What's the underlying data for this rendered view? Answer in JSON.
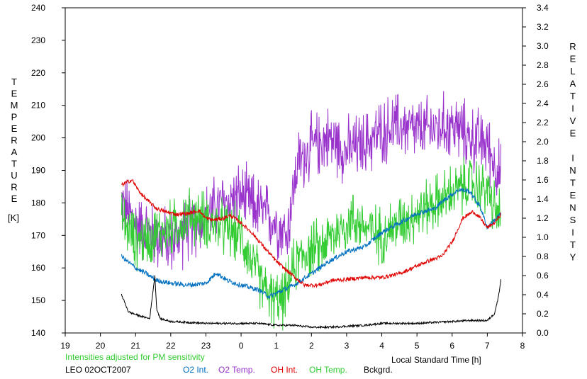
{
  "chart_data": {
    "type": "line",
    "left_axis_label": "TEMPERATURE",
    "left_axis_unit": "[K]",
    "right_axis_label": "RELATIVE INTENSITY",
    "x_axis_label": "Local Standard Time [h]",
    "x_ticks": [
      "19",
      "20",
      "21",
      "22",
      "23",
      "0",
      "1",
      "2",
      "3",
      "4",
      "5",
      "6",
      "7",
      "8"
    ],
    "xlim": [
      19,
      32
    ],
    "ylim_left": [
      140,
      240
    ],
    "ylim_right": [
      0.0,
      3.4
    ],
    "left_ticks": [
      "140",
      "150",
      "160",
      "170",
      "180",
      "190",
      "200",
      "210",
      "220",
      "230",
      "240"
    ],
    "right_ticks": [
      "0.0",
      "0.2",
      "0.4",
      "0.6",
      "0.8",
      "1.0",
      "1.2",
      "1.4",
      "1.6",
      "1.8",
      "2.0",
      "2.2",
      "2.4",
      "2.6",
      "2.8",
      "3.0",
      "3.2",
      "3.4"
    ],
    "note": "Intensities adjusted for PM sensitivity",
    "site_date": "LEO 02OCT2007",
    "grid": false,
    "legend_placement": "bottom",
    "series": [
      {
        "name": "O2 Int.",
        "axis": "right",
        "color": "#0070c0",
        "noise": 0.025,
        "x": [
          20.6,
          20.8,
          21.0,
          21.3,
          21.6,
          22.0,
          22.5,
          23.0,
          23.3,
          23.6,
          24.0,
          24.5,
          24.8,
          25.2,
          25.5,
          26.0,
          26.5,
          27.0,
          27.5,
          28.0,
          28.5,
          29.0,
          29.5,
          29.8,
          30.2,
          30.5,
          30.8,
          31.0,
          31.2,
          31.4
        ],
        "y": [
          0.8,
          0.74,
          0.68,
          0.62,
          0.55,
          0.52,
          0.5,
          0.52,
          0.63,
          0.55,
          0.5,
          0.45,
          0.38,
          0.45,
          0.5,
          0.62,
          0.75,
          0.85,
          0.9,
          1.05,
          1.15,
          1.25,
          1.3,
          1.4,
          1.5,
          1.48,
          1.32,
          1.1,
          1.18,
          1.25
        ]
      },
      {
        "name": "O2 Temp.",
        "axis": "left",
        "color": "#9933cc",
        "noise": 7,
        "x": [
          20.6,
          21.0,
          21.5,
          22.0,
          22.5,
          23.0,
          23.5,
          24.0,
          24.5,
          25.0,
          25.3,
          25.6,
          26.0,
          26.5,
          27.0,
          27.5,
          28.0,
          28.5,
          29.0,
          29.5,
          30.0,
          30.5,
          31.0,
          31.2,
          31.4
        ],
        "y": [
          180,
          174,
          170,
          168,
          172,
          176,
          180,
          182,
          178,
          174,
          170,
          192,
          197,
          200,
          196,
          198,
          202,
          204,
          202,
          203,
          204,
          200,
          198,
          192,
          188
        ]
      },
      {
        "name": "OH Int.",
        "axis": "right",
        "color": "#e00000",
        "noise": 0.02,
        "x": [
          20.6,
          20.9,
          21.1,
          21.3,
          21.6,
          21.9,
          22.2,
          22.5,
          22.8,
          23.0,
          23.2,
          23.5,
          23.7,
          24.0,
          24.3,
          24.6,
          25.0,
          25.4,
          25.8,
          26.2,
          26.6,
          27.0,
          27.5,
          28.0,
          28.5,
          29.0,
          29.3,
          29.7,
          30.0,
          30.3,
          30.6,
          30.8,
          31.0,
          31.2,
          31.4
        ],
        "y": [
          1.55,
          1.6,
          1.48,
          1.4,
          1.3,
          1.26,
          1.24,
          1.25,
          1.28,
          1.2,
          1.18,
          1.2,
          1.23,
          1.15,
          1.05,
          0.92,
          0.75,
          0.62,
          0.5,
          0.5,
          0.55,
          0.56,
          0.58,
          0.58,
          0.62,
          0.7,
          0.75,
          0.8,
          0.95,
          1.2,
          1.27,
          1.2,
          1.1,
          1.15,
          1.25
        ]
      },
      {
        "name": "OH Temp.",
        "axis": "left",
        "color": "#33cc33",
        "noise": 6,
        "x": [
          20.6,
          21.0,
          21.5,
          22.0,
          22.5,
          23.0,
          23.5,
          24.0,
          24.3,
          24.6,
          24.9,
          25.2,
          25.5,
          25.8,
          26.2,
          26.8,
          27.2,
          27.6,
          28.0,
          28.5,
          29.0,
          29.5,
          30.0,
          30.5,
          31.0,
          31.2,
          31.4
        ],
        "y": [
          175,
          168,
          170,
          172,
          176,
          175,
          172,
          170,
          162,
          155,
          150,
          150,
          160,
          165,
          166,
          172,
          175,
          172,
          170,
          174,
          177,
          180,
          183,
          186,
          184,
          178,
          176
        ]
      },
      {
        "name": "Bckgrd.",
        "axis": "right",
        "color": "#000000",
        "noise": 0.01,
        "x": [
          20.6,
          20.8,
          21.1,
          21.4,
          21.55,
          21.6,
          21.7,
          22.0,
          22.5,
          23.0,
          23.5,
          24.0,
          24.5,
          25.0,
          25.5,
          26.0,
          26.5,
          27.0,
          27.5,
          28.0,
          28.5,
          29.0,
          29.5,
          30.0,
          30.5,
          31.0,
          31.2,
          31.3,
          31.4
        ],
        "y": [
          0.4,
          0.22,
          0.18,
          0.15,
          0.6,
          0.25,
          0.15,
          0.12,
          0.11,
          0.1,
          0.1,
          0.1,
          0.1,
          0.08,
          0.08,
          0.06,
          0.06,
          0.07,
          0.08,
          0.1,
          0.1,
          0.1,
          0.11,
          0.12,
          0.13,
          0.13,
          0.2,
          0.35,
          0.58
        ]
      }
    ]
  }
}
